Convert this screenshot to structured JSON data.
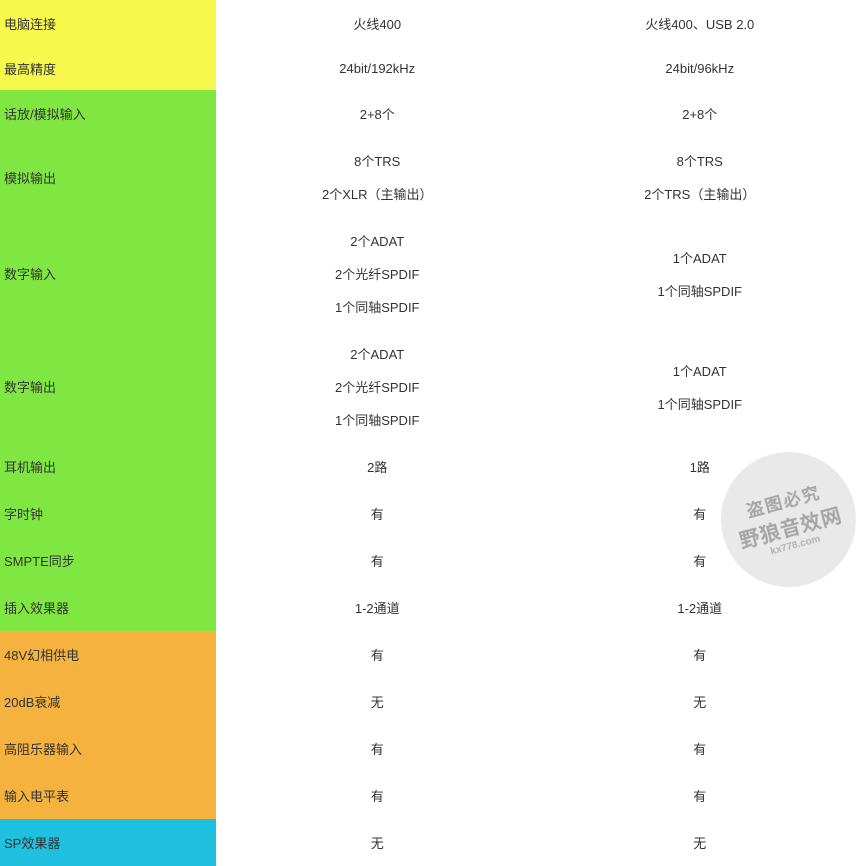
{
  "colors": {
    "yellow": "#f7f84b",
    "green": "#80e641",
    "orange": "#f5b23e",
    "cyan": "#1fc0e0",
    "white": "#ffffff"
  },
  "rows": [
    {
      "label": "电脑连接",
      "color": "yellow",
      "col1": [
        "火线400"
      ],
      "col2": [
        "火线400、USB 2.0"
      ]
    },
    {
      "label": "最高精度",
      "color": "yellow",
      "col1": [
        "24bit/192kHz"
      ],
      "col2": [
        "24bit/96kHz"
      ]
    },
    {
      "label": "话放/模拟输入",
      "color": "green",
      "col1": [
        "2+8个"
      ],
      "col2": [
        "2+8个"
      ]
    },
    {
      "label": "模拟输出",
      "color": "green",
      "col1": [
        "8个TRS",
        "2个XLR（主输出）"
      ],
      "col2": [
        "8个TRS",
        "2个TRS（主输出）"
      ]
    },
    {
      "label": "数字输入",
      "color": "green",
      "col1": [
        "2个ADAT",
        "2个光纤SPDIF",
        "1个同轴SPDIF"
      ],
      "col2": [
        "1个ADAT",
        "1个同轴SPDIF"
      ]
    },
    {
      "label": "数字输出",
      "color": "green",
      "col1": [
        "2个ADAT",
        "2个光纤SPDIF",
        "1个同轴SPDIF"
      ],
      "col2": [
        "1个ADAT",
        "1个同轴SPDIF"
      ]
    },
    {
      "label": "耳机输出",
      "color": "green",
      "col1": [
        "2路"
      ],
      "col2": [
        "1路"
      ]
    },
    {
      "label": "字时钟",
      "color": "green",
      "col1": [
        "有"
      ],
      "col2": [
        "有"
      ]
    },
    {
      "label": "SMPTE同步",
      "color": "green",
      "col1": [
        "有"
      ],
      "col2": [
        "有"
      ]
    },
    {
      "label": "插入效果器",
      "color": "green",
      "col1": [
        "1-2通道"
      ],
      "col2": [
        "1-2通道"
      ]
    },
    {
      "label": "48V幻相供电",
      "color": "orange",
      "col1": [
        "有"
      ],
      "col2": [
        "有"
      ]
    },
    {
      "label": "20dB衰减",
      "color": "orange",
      "col1": [
        "无"
      ],
      "col2": [
        "无"
      ]
    },
    {
      "label": "高阻乐器输入",
      "color": "orange",
      "col1": [
        "有"
      ],
      "col2": [
        "有"
      ]
    },
    {
      "label": "输入电平表",
      "color": "orange",
      "col1": [
        "有"
      ],
      "col2": [
        "有"
      ]
    },
    {
      "label": "SP效果器",
      "color": "cyan",
      "col1": [
        "无"
      ],
      "col2": [
        "无"
      ]
    }
  ],
  "watermark": {
    "line1": "盗图必究",
    "line2": "野狼音效网",
    "line3": "kx778.com"
  }
}
